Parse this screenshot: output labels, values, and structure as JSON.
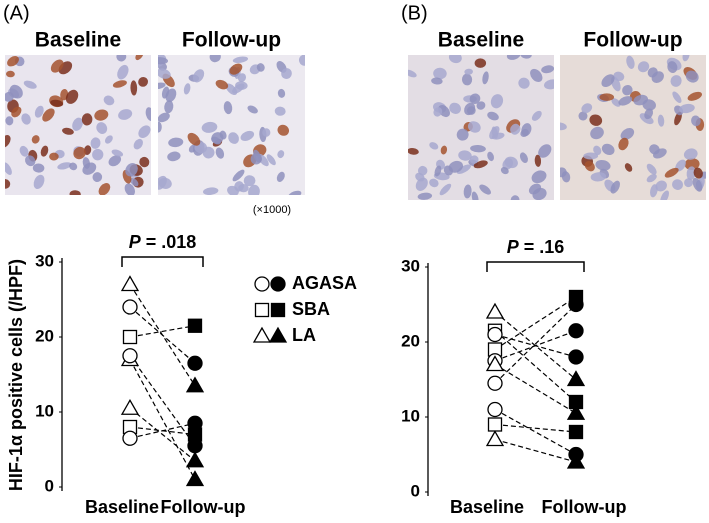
{
  "chart_data": [
    {
      "type": "paired",
      "panel_label": "(A)",
      "image_labels": [
        "Baseline",
        "Follow-up"
      ],
      "magnification": "(×1000)",
      "y_label": "HIF-1α positive cells (/HPF)",
      "annotation_symbol": "P",
      "annotation_value": "= .018",
      "categories": [
        "Baseline",
        "Follow-up"
      ],
      "ylim": [
        0,
        30
      ],
      "yticks": [
        0,
        10,
        20,
        30
      ],
      "legend": [
        {
          "name": "AGASA",
          "marker": "circle"
        },
        {
          "name": "SBA",
          "marker": "square"
        },
        {
          "name": "LA",
          "marker": "triangle"
        }
      ],
      "series": [
        {
          "marker": "triangle",
          "values": [
            27,
            13.5
          ]
        },
        {
          "marker": "circle",
          "values": [
            24,
            16.5
          ]
        },
        {
          "marker": "square",
          "values": [
            20,
            21.5
          ]
        },
        {
          "marker": "triangle",
          "values": [
            17,
            1
          ]
        },
        {
          "marker": "circle",
          "values": [
            17.5,
            5.5
          ]
        },
        {
          "marker": "triangle",
          "values": [
            10.5,
            3.5
          ]
        },
        {
          "marker": "square",
          "values": [
            8,
            7
          ]
        },
        {
          "marker": "circle",
          "values": [
            6.5,
            8.5
          ]
        }
      ]
    },
    {
      "type": "paired",
      "panel_label": "(B)",
      "image_labels": [
        "Baseline",
        "Follow-up"
      ],
      "annotation_symbol": "P",
      "annotation_value": "= .16",
      "categories": [
        "Baseline",
        "Follow-up"
      ],
      "ylim": [
        0,
        30
      ],
      "yticks": [
        0,
        10,
        20,
        30
      ],
      "series": [
        {
          "marker": "triangle",
          "values": [
            24,
            15
          ]
        },
        {
          "marker": "square",
          "values": [
            21.5,
            12
          ]
        },
        {
          "marker": "circle",
          "values": [
            21,
            18
          ]
        },
        {
          "marker": "square",
          "values": [
            19,
            26
          ]
        },
        {
          "marker": "circle",
          "values": [
            17.5,
            21.5
          ]
        },
        {
          "marker": "triangle",
          "values": [
            17,
            10.5
          ]
        },
        {
          "marker": "circle",
          "values": [
            14.5,
            25
          ]
        },
        {
          "marker": "circle",
          "values": [
            11,
            5
          ]
        },
        {
          "marker": "square",
          "values": [
            9,
            8
          ]
        },
        {
          "marker": "triangle",
          "values": [
            7,
            4
          ]
        }
      ]
    }
  ]
}
